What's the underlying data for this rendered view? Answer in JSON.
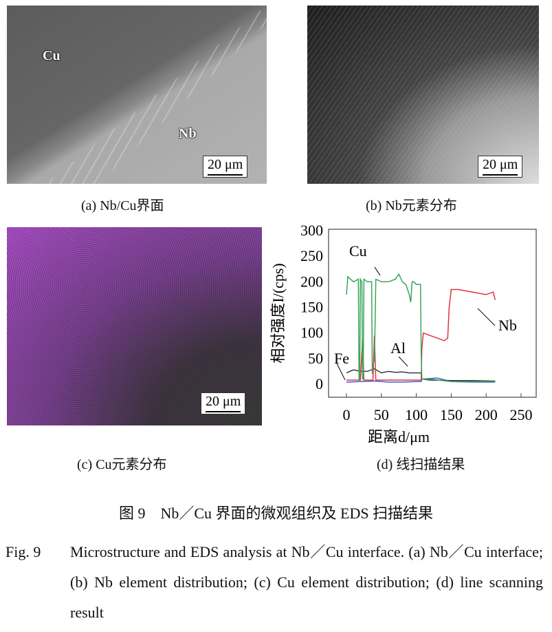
{
  "panels": {
    "a": {
      "label_cu": "Cu",
      "label_nb": "Nb",
      "scale": "20 μm",
      "caption": "(a) Nb/Cu界面"
    },
    "b": {
      "scale": "20 μm",
      "caption": "(b) Nb元素分布"
    },
    "c": {
      "scale": "20 μm",
      "caption": "(c) Cu元素分布"
    },
    "d": {
      "caption": "(d) 线扫描结果"
    }
  },
  "figure": {
    "cn_caption": "图 9　Nb／Cu 界面的微观组织及 EDS 扫描结果",
    "en_number": "Fig. 9",
    "en_caption": "Microstructure and EDS analysis at Nb／Cu interface. (a) Nb／Cu interface; (b) Nb element distribution; (c) Cu element distribution; (d) line scanning result"
  },
  "chart_data": {
    "type": "line",
    "xlabel": "距离d/μm",
    "ylabel": "相对强度I/(cps)",
    "xlim": [
      -25,
      275
    ],
    "ylim": [
      -25,
      300
    ],
    "xticks": [
      0,
      50,
      100,
      150,
      200,
      250
    ],
    "yticks": [
      0,
      50,
      100,
      150,
      200,
      250,
      300
    ],
    "grid": false,
    "series": [
      {
        "name": "Cu",
        "color": "#3aa55a",
        "x": [
          0,
          2,
          10,
          17,
          18,
          19,
          20,
          22,
          23,
          24,
          25,
          30,
          36,
          37,
          38,
          40,
          41,
          42,
          50,
          60,
          70,
          75,
          80,
          85,
          90,
          92,
          94,
          96,
          100,
          106,
          107,
          108,
          120,
          150,
          213
        ],
        "y": [
          175,
          210,
          200,
          205,
          10,
          10,
          205,
          200,
          10,
          10,
          205,
          200,
          200,
          20,
          40,
          45,
          120,
          205,
          200,
          200,
          205,
          215,
          200,
          195,
          175,
          160,
          200,
          200,
          195,
          195,
          60,
          10,
          10,
          5,
          5
        ]
      },
      {
        "name": "Nb",
        "color": "#e03040",
        "x": [
          0,
          20,
          23,
          25,
          38,
          40,
          42,
          107,
          108,
          110,
          120,
          130,
          140,
          145,
          147,
          150,
          160,
          180,
          200,
          210,
          213
        ],
        "y": [
          8,
          8,
          85,
          8,
          8,
          95,
          8,
          8,
          70,
          100,
          95,
          90,
          85,
          90,
          150,
          185,
          185,
          180,
          175,
          180,
          165
        ]
      },
      {
        "name": "Al",
        "color": "#3a3a3a",
        "x": [
          0,
          10,
          20,
          30,
          40,
          50,
          60,
          70,
          80,
          90,
          100,
          107,
          108,
          120,
          150,
          180,
          213
        ],
        "y": [
          22,
          28,
          25,
          25,
          30,
          22,
          25,
          23,
          24,
          22,
          22,
          22,
          10,
          8,
          7,
          7,
          6
        ]
      },
      {
        "name": "Fe",
        "color": "#3a5fd0",
        "x": [
          0,
          20,
          40,
          60,
          80,
          100,
          107,
          108,
          130,
          150,
          180,
          213
        ],
        "y": [
          4,
          5,
          6,
          4,
          4,
          5,
          5,
          10,
          12,
          5,
          4,
          4
        ]
      }
    ]
  }
}
